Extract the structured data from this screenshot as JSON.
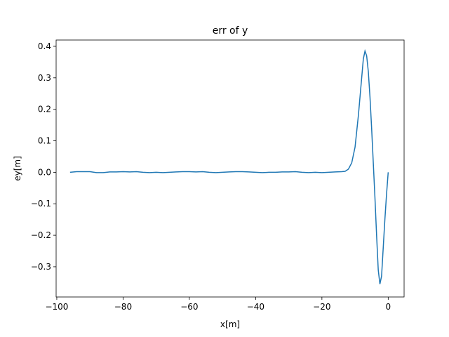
{
  "chart_data": {
    "type": "line",
    "title": "err of y",
    "xlabel": "x[m]",
    "ylabel": "ey[m]",
    "x": [
      -96,
      -94,
      -92,
      -90,
      -88,
      -86,
      -84,
      -82,
      -80,
      -78,
      -76,
      -74,
      -72,
      -70,
      -68,
      -66,
      -64,
      -62,
      -60,
      -58,
      -56,
      -54,
      -52,
      -50,
      -48,
      -46,
      -44,
      -42,
      -40,
      -38,
      -36,
      -34,
      -32,
      -30,
      -28,
      -26,
      -24,
      -22,
      -20,
      -18,
      -16,
      -14,
      -13,
      -12,
      -11,
      -10,
      -9,
      -8,
      -7.5,
      -7,
      -6.5,
      -6,
      -5.5,
      -5,
      -4.5,
      -4,
      -3.5,
      -3,
      -2.5,
      -2,
      -1.5,
      -1,
      -0.5,
      0
    ],
    "series": [
      {
        "color": "#1f77b4",
        "values": [
          0,
          0.002,
          0.002,
          0.002,
          -0.001,
          -0.001,
          0.001,
          0.001,
          0.002,
          0.001,
          0.002,
          0,
          -0.001,
          0,
          -0.001,
          0,
          0.001,
          0.002,
          0.002,
          0.001,
          0.002,
          0,
          -0.001,
          0,
          0.001,
          0.002,
          0.002,
          0.001,
          0,
          -0.001,
          0,
          0,
          0.001,
          0.001,
          0.002,
          0,
          -0.001,
          0,
          -0.001,
          0,
          0.001,
          0.002,
          0.003,
          0.01,
          0.03,
          0.08,
          0.18,
          0.3,
          0.36,
          0.385,
          0.37,
          0.32,
          0.24,
          0.14,
          0.03,
          -0.08,
          -0.2,
          -0.31,
          -0.355,
          -0.33,
          -0.24,
          -0.15,
          -0.07,
          0
        ]
      }
    ],
    "xlim": [
      -100.2,
      4.8
    ],
    "ylim": [
      -0.396,
      0.42
    ],
    "xticks": [
      {
        "value": -100,
        "label": "−100"
      },
      {
        "value": -80,
        "label": "−80"
      },
      {
        "value": -60,
        "label": "−60"
      },
      {
        "value": -40,
        "label": "−40"
      },
      {
        "value": -20,
        "label": "−20"
      },
      0
    ],
    "yticks": [
      {
        "value": -0.3,
        "label": "−0.3"
      },
      {
        "value": -0.2,
        "label": "−0.2"
      },
      {
        "value": -0.1,
        "label": "−0.1"
      },
      {
        "value": 0,
        "label": "0.0"
      },
      {
        "value": 0.1,
        "label": "0.1"
      },
      {
        "value": 0.2,
        "label": "0.2"
      },
      {
        "value": 0.3,
        "label": "0.3"
      },
      {
        "value": 0.4,
        "label": "0.4"
      }
    ]
  }
}
